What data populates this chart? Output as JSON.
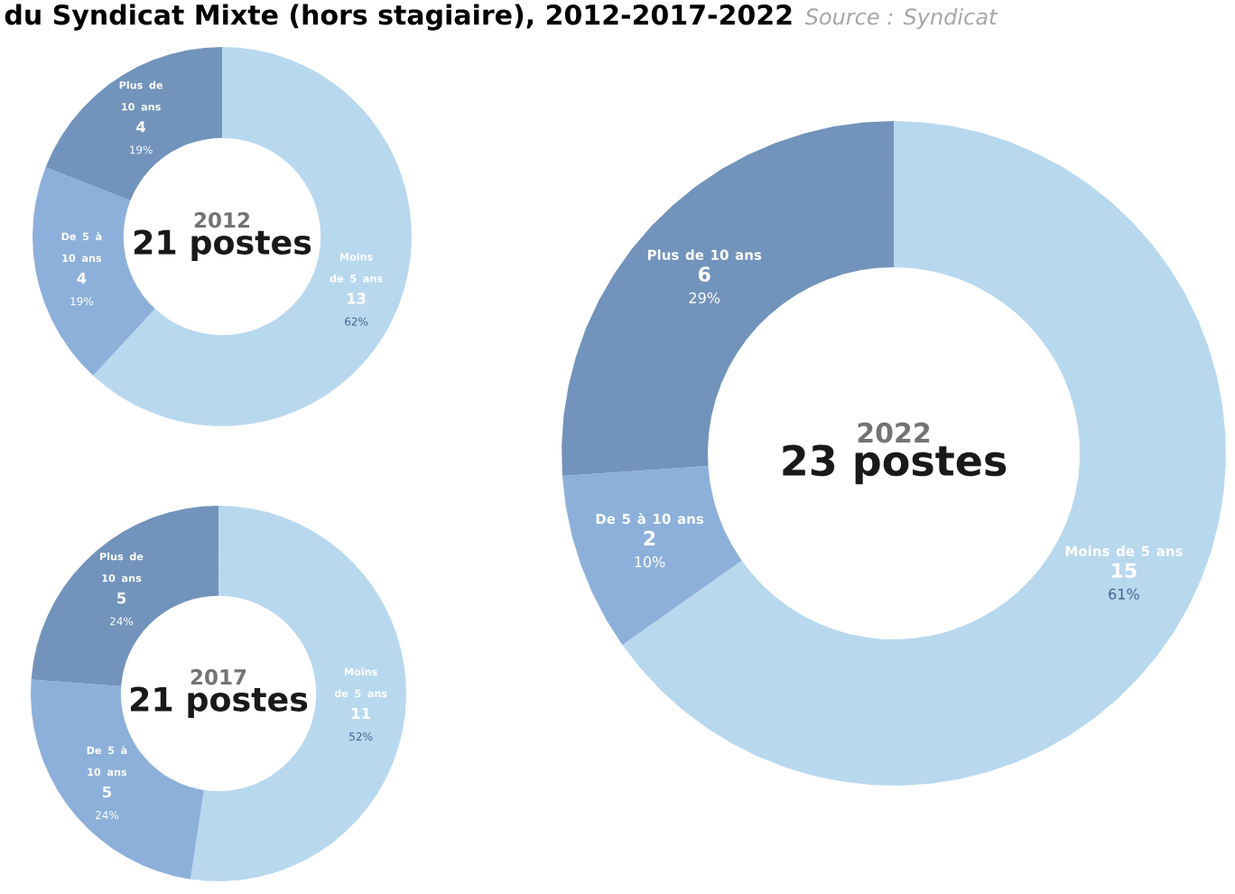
{
  "chart_data": [
    {
      "type": "donut",
      "title": "2012",
      "subtitle": "21 postes",
      "categories": [
        "Moins de 5 ans",
        "De 5 à 10 ans",
        "Plus de 10 ans"
      ],
      "values": [
        13,
        4,
        4
      ],
      "colors": [
        "#b8d8ee",
        "#8db0da",
        "#7293bb"
      ],
      "data_labels": true,
      "annotations": [
        "du Syndicat Mixte (hors stagiaire), 2012-2017-2022",
        "Source : Syndicat",
        "62%",
        "19%",
        "19%"
      ]
    },
    {
      "type": "donut",
      "title": "2017",
      "subtitle": "21 postes",
      "categories": [
        "Moins de 5 ans",
        "De 5 à 10 ans",
        "Plus de 10 ans"
      ],
      "values": [
        11,
        5,
        5
      ],
      "colors": [
        "#b8d8ee",
        "#8db0da",
        "#7293bb"
      ],
      "data_labels": true,
      "annotations": [
        "52%",
        "24%",
        "24%"
      ]
    },
    {
      "type": "donut",
      "title": "2022",
      "subtitle": "23 postes",
      "categories": [
        "Moins de 5 ans",
        "De 5 à 10 ans",
        "Plus de 10 ans"
      ],
      "values": [
        15,
        2,
        6
      ],
      "colors": [
        "#b8d8ee",
        "#8db0da",
        "#7293bb"
      ],
      "data_labels": true,
      "annotations": [
        "61%",
        "10%",
        "29%"
      ]
    }
  ]
}
